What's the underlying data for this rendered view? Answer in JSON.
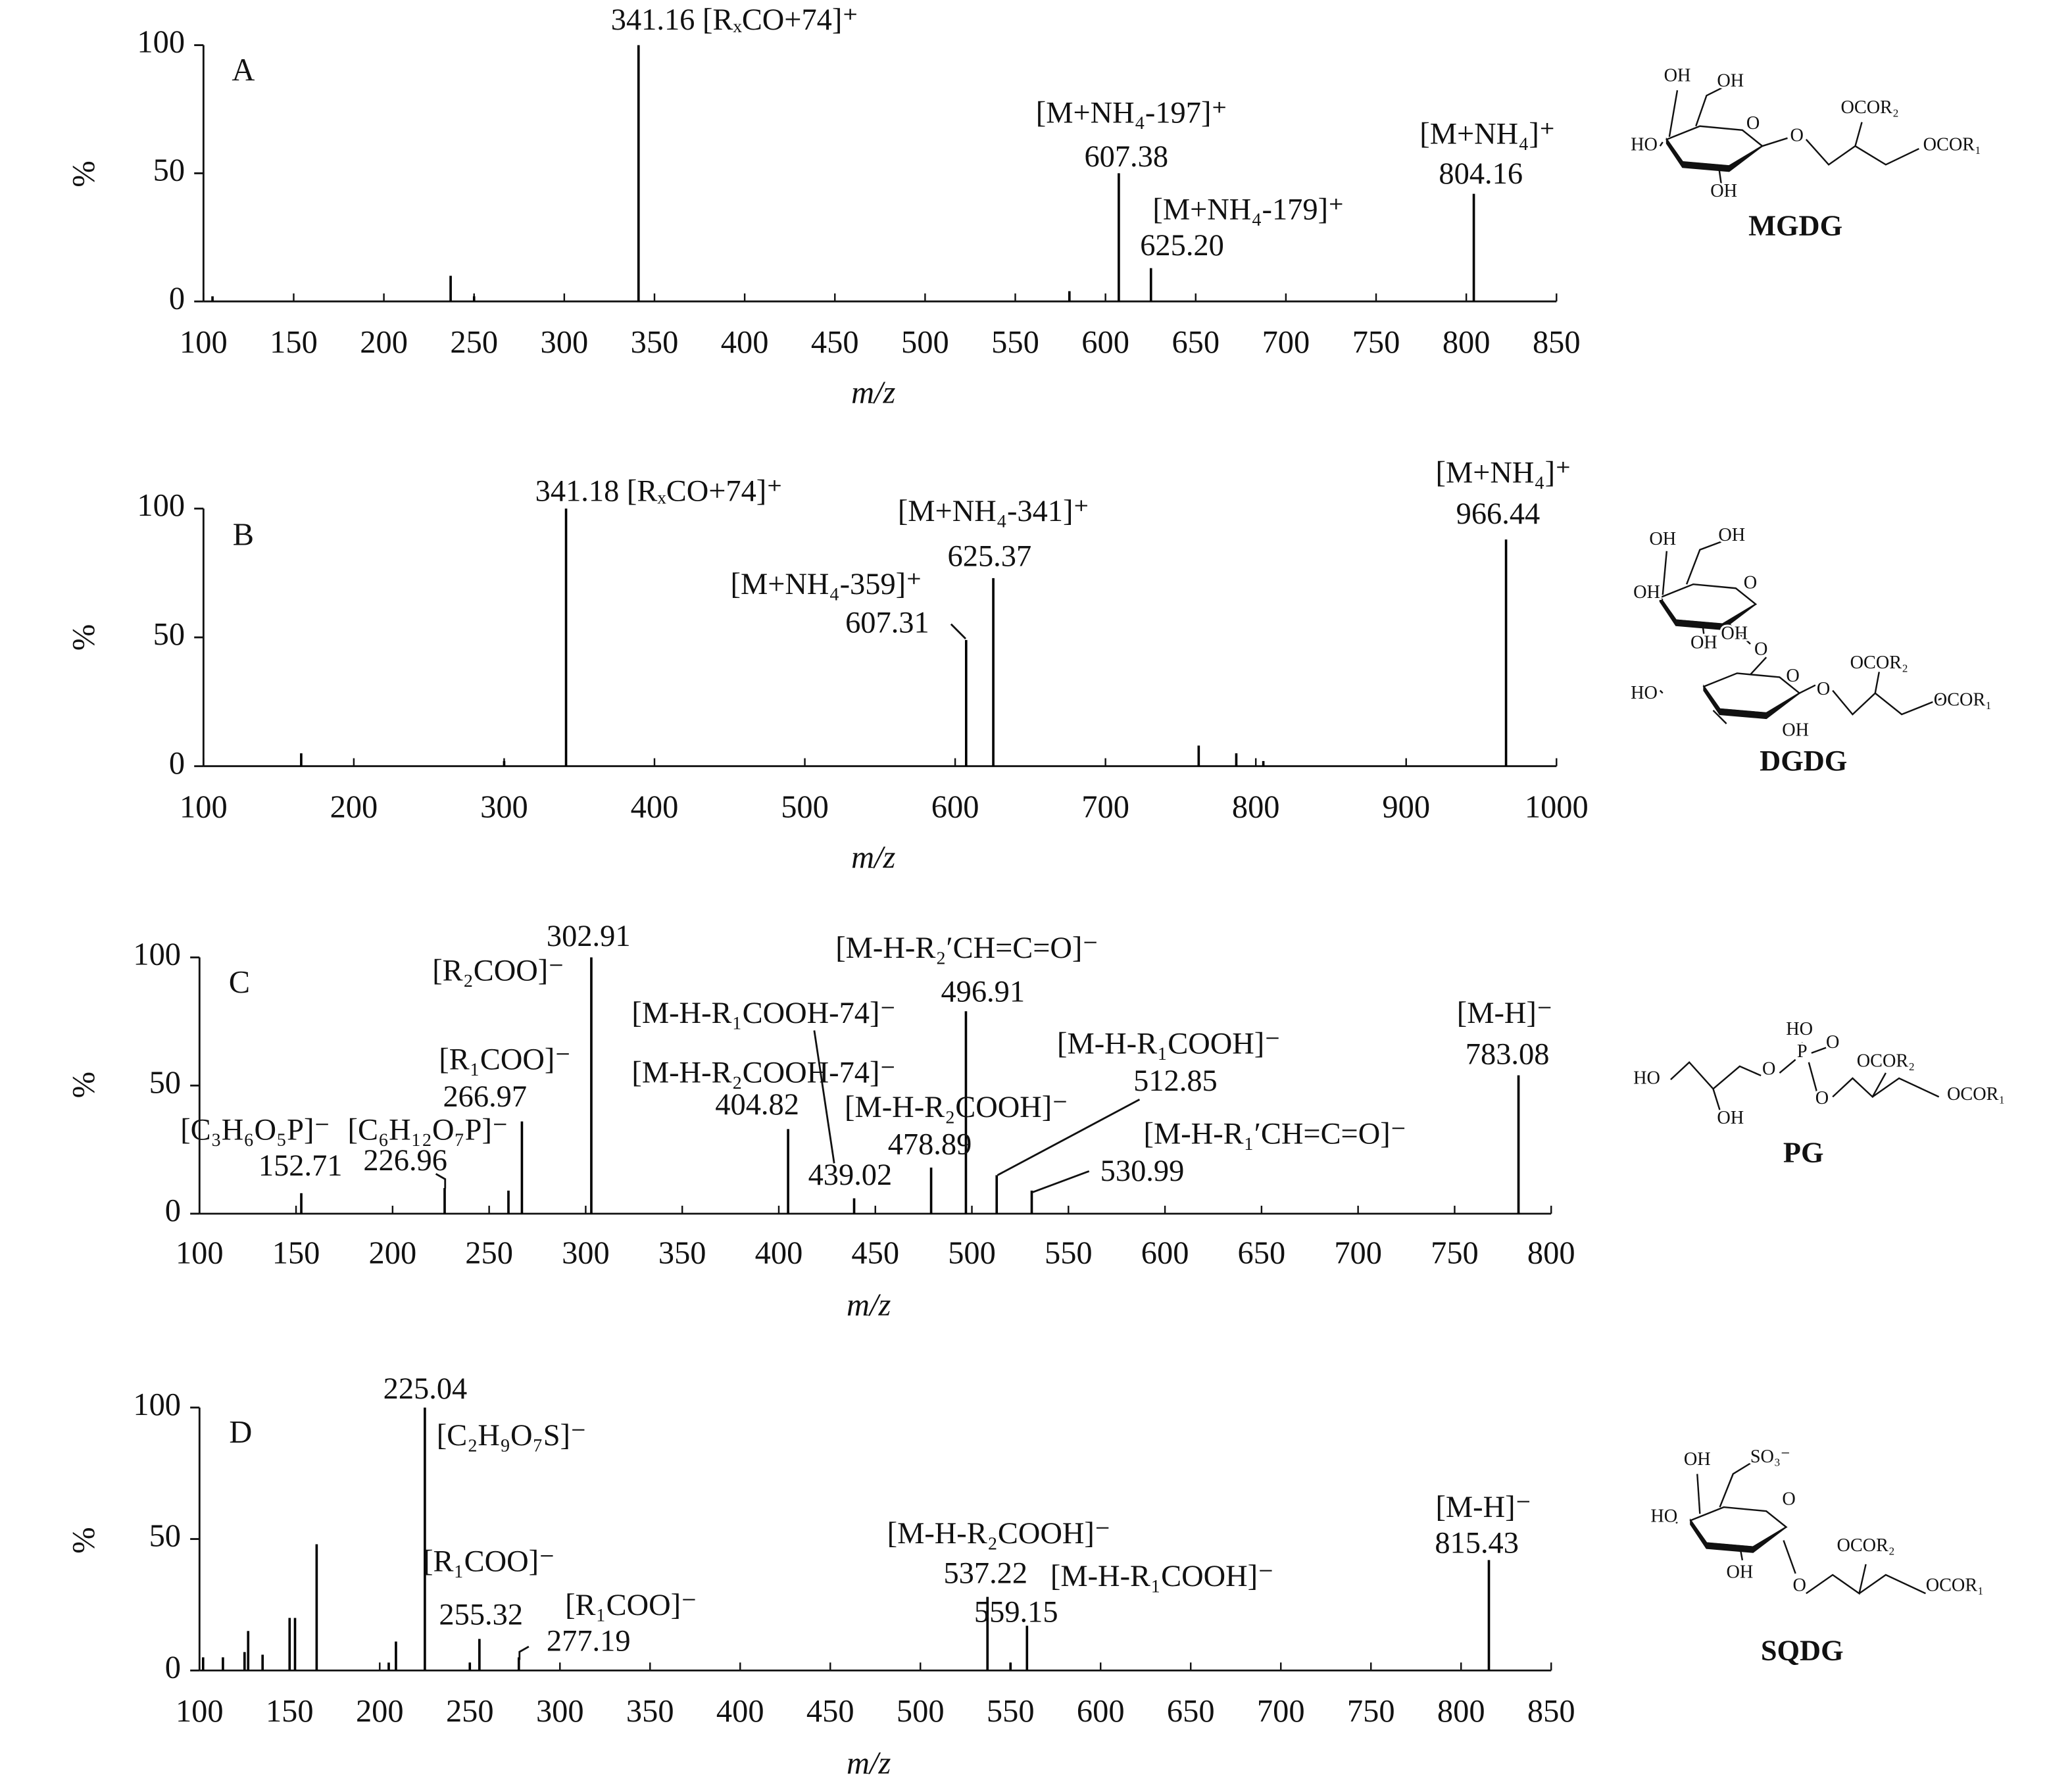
{
  "chart_data": [
    {
      "type": "bar",
      "panel": "A",
      "color": "#000000",
      "x": [
        105,
        237,
        250,
        341.16,
        580,
        607.38,
        625.2,
        804.16
      ],
      "values": [
        2,
        10,
        2,
        100,
        4,
        50,
        13,
        42
      ],
      "xlim": [
        100,
        850
      ],
      "xticks": [
        100,
        150,
        200,
        250,
        300,
        350,
        400,
        450,
        500,
        550,
        600,
        650,
        700,
        750,
        800,
        850
      ],
      "ylim": [
        0,
        100
      ],
      "yticks": [
        0,
        50,
        100
      ],
      "xlabel": "m/z",
      "ylabel": "%",
      "annotations": [
        "341.16 [RₓCO+74]⁺",
        "[M+NH₄-197]⁺",
        "607.38",
        "[M+NH₄-179]⁺",
        "625.20",
        "[M+NH₄]⁺",
        "804.16"
      ],
      "structure": {
        "name": "MGDG",
        "labels": [
          "OH",
          "OH",
          "HO",
          "OH",
          "O",
          "O",
          "OCOR₂",
          "OCOR₁"
        ]
      }
    },
    {
      "type": "bar",
      "panel": "B",
      "color": "#000000",
      "x": [
        165,
        300,
        341.18,
        607.31,
        625.37,
        762,
        787,
        805,
        966.44
      ],
      "values": [
        5,
        2,
        100,
        49,
        73,
        8,
        5,
        2,
        88
      ],
      "xlim": [
        100,
        1000
      ],
      "xticks": [
        100,
        200,
        300,
        400,
        500,
        600,
        700,
        800,
        900,
        1000
      ],
      "ylim": [
        0,
        100
      ],
      "yticks": [
        0,
        50,
        100
      ],
      "xlabel": "m/z",
      "ylabel": "%",
      "annotations": [
        "341.18 [RₓCO+74]⁺",
        "[M+NH₄-341]⁺",
        "625.37",
        "[M+NH₄-359]⁺",
        "607.31",
        "[M+NH₄]⁺",
        "966.44"
      ],
      "structure": {
        "name": "DGDG",
        "labels": [
          "OH",
          "OH",
          "OH",
          "O",
          "O",
          "OH",
          "OH",
          "HO",
          "O",
          "O",
          "OCOR₂",
          "OCOR₁",
          "OH"
        ]
      }
    },
    {
      "type": "bar",
      "panel": "C",
      "color": "#000000",
      "x": [
        152.71,
        226.96,
        260,
        266.97,
        302.91,
        404.82,
        439.02,
        478.89,
        496.91,
        512.85,
        530.99,
        783.08
      ],
      "values": [
        8,
        10,
        9,
        36,
        100,
        33,
        6,
        18,
        79,
        15,
        9,
        54
      ],
      "xlim": [
        100,
        800
      ],
      "xticks": [
        100,
        150,
        200,
        250,
        300,
        350,
        400,
        450,
        500,
        550,
        600,
        650,
        700,
        750,
        800
      ],
      "ylim": [
        0,
        100
      ],
      "yticks": [
        0,
        50,
        100
      ],
      "xlabel": "m/z",
      "ylabel": "%",
      "annotations": [
        "302.91",
        "[R₂COO]⁻",
        "[M-H-R₂′CH=C=O]⁻",
        "496.91",
        "[M-H-R₁COOH-74]⁻",
        "[M-H]⁻",
        "783.08",
        "[R₁COO]⁻",
        "[M-H-R₁COOH]⁻",
        "[M-H-R₂COOH-74]⁻",
        "512.85",
        "404.82",
        "[M-H-R₂COOH]⁻",
        "266.97",
        "[C₃H₆O₅P]⁻",
        "[C₆H₁₂O₇P]⁻",
        "[M-H-R₁′CH=C=O]⁻",
        "152.71",
        "226.96",
        "439.02",
        "478.89",
        "530.99"
      ],
      "structure": {
        "name": "PG",
        "labels": [
          "HO",
          "OH",
          "O",
          "HO",
          "P",
          "O",
          "O",
          "OCOR₂",
          "OCOR₁"
        ]
      }
    },
    {
      "type": "bar",
      "panel": "D",
      "color": "#000000",
      "x": [
        102,
        113,
        125,
        127,
        135,
        150,
        153,
        165,
        205,
        209,
        225.04,
        250,
        255.32,
        277.19,
        537.22,
        550,
        559.15,
        815.43
      ],
      "values": [
        5,
        5,
        7,
        15,
        6,
        20,
        20,
        48,
        3,
        11,
        100,
        3,
        12,
        5,
        28,
        3,
        17,
        42
      ],
      "xlim": [
        100,
        850
      ],
      "xticks": [
        100,
        150,
        200,
        250,
        300,
        350,
        400,
        450,
        500,
        550,
        600,
        650,
        700,
        750,
        800,
        850
      ],
      "ylim": [
        0,
        100
      ],
      "yticks": [
        0,
        50,
        100
      ],
      "xlabel": "m/z",
      "ylabel": "%",
      "annotations": [
        "225.04",
        "[C₂H₉O₇S]⁻",
        "[R₁COO]⁻",
        "255.32",
        "[R₁COO]⁻",
        "277.19",
        "[M-H-R₂COOH]⁻",
        "537.22",
        "[M-H-R₁COOH]⁻",
        "559.15",
        "[M-H]⁻",
        "815.43"
      ],
      "structure": {
        "name": "SQDG",
        "labels": [
          "OH",
          "SO₃⁻",
          "HO",
          "O",
          "OH",
          "O",
          "OCOR₂",
          "OCOR₁"
        ]
      }
    }
  ]
}
